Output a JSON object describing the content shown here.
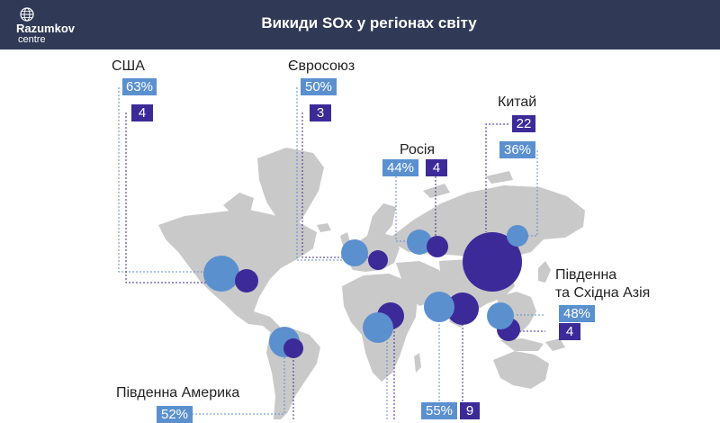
{
  "header": {
    "logo_name": "Razumkov",
    "logo_sub": "centre",
    "title": "Викиди SOx  у  регіонах світу"
  },
  "regions": {
    "usa": {
      "name": "США",
      "percent": "63%",
      "value": "4"
    },
    "eu": {
      "name": "Євросоюз",
      "percent": "50%",
      "value": "3"
    },
    "russia": {
      "name": "Росія",
      "percent": "44%",
      "value": "4"
    },
    "china": {
      "name": "Китай",
      "value": "22",
      "percent": "36%"
    },
    "sea": {
      "name_line1": "Південна",
      "name_line2": "та Східна Азія",
      "percent": "48%",
      "value": "4"
    },
    "south_america": {
      "name": "Південна Америка",
      "percent": "52%"
    },
    "africa_india": {
      "percent": "55%",
      "value": "9"
    }
  },
  "colors": {
    "header": "#303a57",
    "blue": "#5b90cf",
    "purple": "#3d2a99",
    "land": "#c9c9c9"
  }
}
